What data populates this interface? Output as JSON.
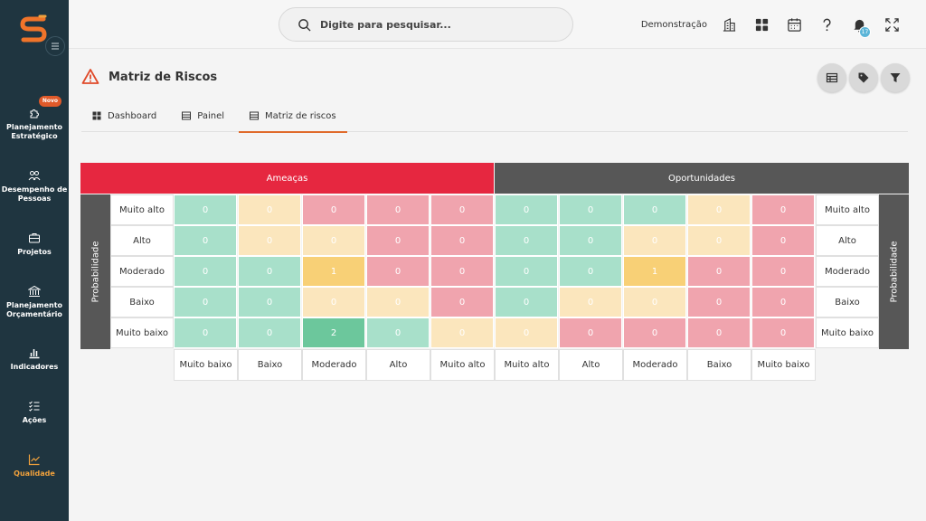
{
  "sidebar": {
    "items": [
      {
        "label": "Planejamento Estratégico",
        "icon": "puzzle-icon",
        "badge": "Novo",
        "active": false
      },
      {
        "label": "Desempenho de Pessoas",
        "icon": "people-icon",
        "active": false
      },
      {
        "label": "Projetos",
        "icon": "briefcase-icon",
        "active": false
      },
      {
        "label": "Planejamento Orçamentário",
        "icon": "bank-icon",
        "active": false
      },
      {
        "label": "Indicadores",
        "icon": "bar-chart-icon",
        "active": false
      },
      {
        "label": "Ações",
        "icon": "checklist-icon",
        "active": false
      },
      {
        "label": "Qualidade",
        "icon": "trend-icon",
        "active": true
      }
    ]
  },
  "topbar": {
    "search_placeholder": "Digite para pesquisar...",
    "company": "Demonstração",
    "notification_count": "17"
  },
  "page": {
    "title": "Matriz de Riscos"
  },
  "tabs": [
    {
      "label": "Dashboard",
      "active": false
    },
    {
      "label": "Painel",
      "active": false
    },
    {
      "label": "Matriz de riscos",
      "active": true
    }
  ],
  "matrix": {
    "threats_label": "Ameaças",
    "opportunities_label": "Oportunidades",
    "axis_label": "Probabilidade",
    "rows": [
      "Muito alto",
      "Alto",
      "Moderado",
      "Baixo",
      "Muito baixo"
    ],
    "threat_columns": [
      "Muito baixo",
      "Baixo",
      "Moderado",
      "Alto",
      "Muito alto"
    ],
    "opportunity_columns": [
      "Muito alto",
      "Alto",
      "Moderado",
      "Baixo",
      "Muito baixo"
    ],
    "colors": {
      "green": "#a8e0ca",
      "yellow": "#fbe6bd",
      "red": "#f0a4ae",
      "orange": "#f8d076",
      "darkgreen": "#6cc79c"
    },
    "threat_values": [
      [
        0,
        0,
        0,
        0,
        0
      ],
      [
        0,
        0,
        0,
        0,
        0
      ],
      [
        0,
        0,
        1,
        0,
        0
      ],
      [
        0,
        0,
        0,
        0,
        0
      ],
      [
        0,
        0,
        2,
        0,
        0
      ]
    ],
    "threat_colors": [
      [
        "green",
        "yellow",
        "red",
        "red",
        "red"
      ],
      [
        "green",
        "yellow",
        "yellow",
        "red",
        "red"
      ],
      [
        "green",
        "green",
        "orange",
        "red",
        "red"
      ],
      [
        "green",
        "green",
        "yellow",
        "yellow",
        "red"
      ],
      [
        "green",
        "green",
        "darkgreen",
        "green",
        "yellow"
      ]
    ],
    "opportunity_values": [
      [
        0,
        0,
        0,
        0,
        0
      ],
      [
        0,
        0,
        0,
        0,
        0
      ],
      [
        0,
        0,
        1,
        0,
        0
      ],
      [
        0,
        0,
        0,
        0,
        0
      ],
      [
        0,
        0,
        0,
        0,
        0
      ]
    ],
    "opportunity_colors": [
      [
        "green",
        "green",
        "green",
        "yellow",
        "red"
      ],
      [
        "green",
        "green",
        "yellow",
        "yellow",
        "red"
      ],
      [
        "green",
        "green",
        "orange",
        "red",
        "red"
      ],
      [
        "green",
        "yellow",
        "yellow",
        "red",
        "red"
      ],
      [
        "yellow",
        "red",
        "red",
        "red",
        "red"
      ]
    ]
  }
}
